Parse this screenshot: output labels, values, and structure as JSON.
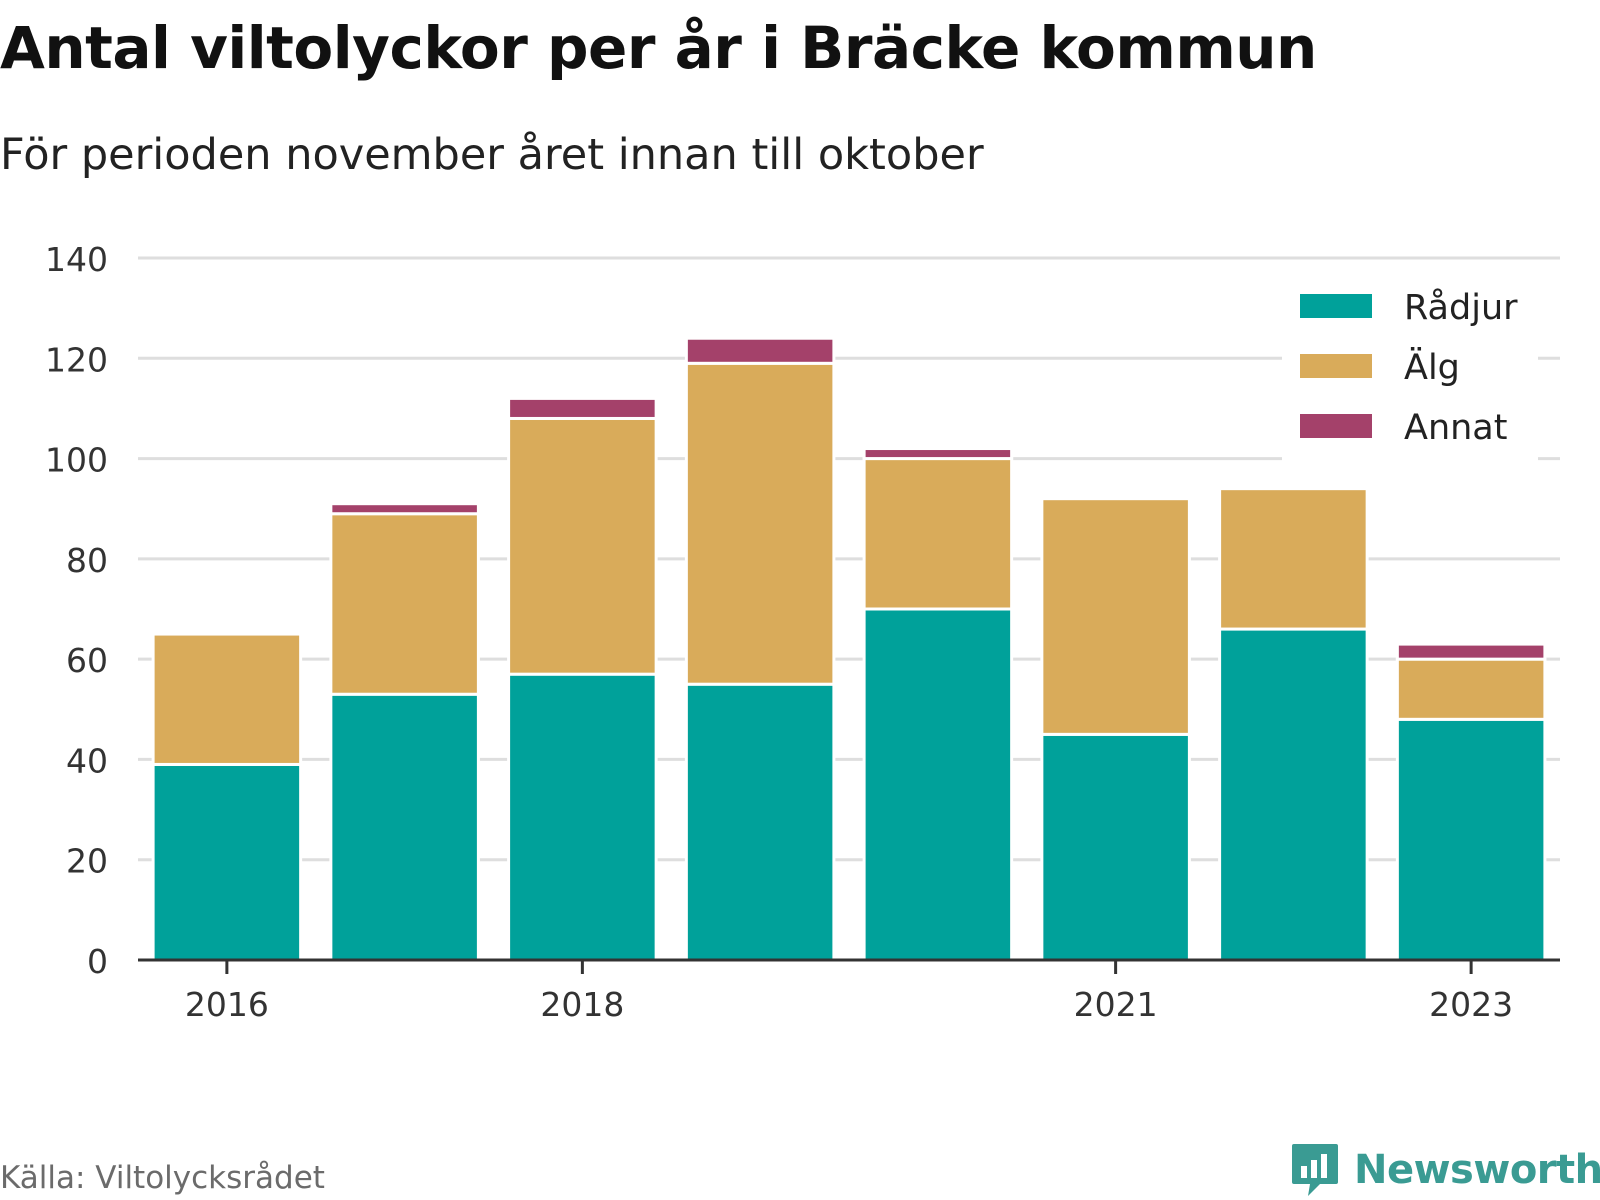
{
  "header": {
    "title": "Antal viltolyckor per år i Bräcke kommun",
    "subtitle": "För perioden november året innan till oktober"
  },
  "footer": {
    "source": "Källa: Viltolycksrådet",
    "brand": "Newsworthy"
  },
  "colors": {
    "radjur": "#00a19a",
    "alg": "#d9ab5a",
    "annat": "#a4416a",
    "brand": "#3a9b93"
  },
  "chart_data": {
    "type": "bar",
    "stacked": true,
    "title": "Antal viltolyckor per år i Bräcke kommun",
    "subtitle": "För perioden november året innan till oktober",
    "categories": [
      "2016",
      "2017",
      "2018",
      "2019",
      "2020",
      "2021",
      "2022",
      "2023"
    ],
    "x_tick_labels": [
      "2016",
      "2018",
      "2021",
      "2023"
    ],
    "series": [
      {
        "name": "Rådjur",
        "color": "#00a19a",
        "values": [
          39,
          53,
          57,
          55,
          70,
          45,
          66,
          48
        ]
      },
      {
        "name": "Älg",
        "color": "#d9ab5a",
        "values": [
          26,
          36,
          51,
          64,
          30,
          47,
          28,
          12
        ]
      },
      {
        "name": "Annat",
        "color": "#a4416a",
        "values": [
          0,
          2,
          4,
          5,
          2,
          0,
          0,
          3
        ]
      }
    ],
    "ylim": [
      0,
      140
    ],
    "y_ticks": [
      0,
      20,
      40,
      60,
      80,
      100,
      120,
      140
    ],
    "grid": true,
    "legend": "top-right",
    "xlabel": "",
    "ylabel": ""
  }
}
